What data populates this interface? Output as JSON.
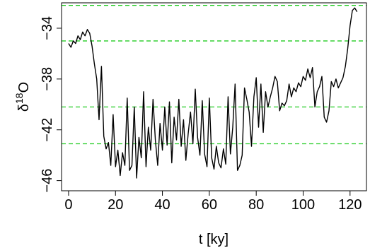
{
  "chart_data": {
    "type": "line",
    "title": "",
    "xlabel": "t [ky]",
    "ylabel": {
      "base": "δ",
      "sup": "18",
      "rest": "O"
    },
    "xlim": [
      -3,
      127
    ],
    "ylim": [
      -46.8,
      -32.0
    ],
    "y_inverted": false,
    "xticks": [
      0,
      20,
      40,
      60,
      80,
      100,
      120
    ],
    "xtick_labels": [
      "0",
      "20",
      "40",
      "60",
      "80",
      "100",
      "120"
    ],
    "yticks": [
      -34,
      -38,
      -42,
      -46
    ],
    "ytick_labels": [
      "−34",
      "−38",
      "−42",
      "−46"
    ],
    "grid": false,
    "reference_lines": {
      "orientation": "horizontal",
      "style": "dashed",
      "color": "#22cc22",
      "values": [
        -32.2,
        -35.0,
        -40.2,
        -43.1
      ]
    },
    "series": [
      {
        "color": "#000000",
        "x": [
          0,
          1,
          2,
          3,
          4,
          5,
          6,
          7,
          8,
          9,
          10,
          11,
          12,
          13,
          14,
          15,
          16,
          17,
          18,
          19,
          20,
          21,
          22,
          23,
          24,
          25,
          26,
          27,
          28,
          29,
          30,
          31,
          32,
          33,
          34,
          35,
          36,
          37,
          38,
          39,
          40,
          41,
          42,
          43,
          44,
          45,
          46,
          47,
          48,
          49,
          50,
          51,
          52,
          53,
          54,
          55,
          56,
          57,
          58,
          59,
          60,
          61,
          62,
          63,
          64,
          65,
          66,
          67,
          68,
          69,
          70,
          71,
          72,
          73,
          74,
          75,
          76,
          77,
          78,
          79,
          80,
          81,
          82,
          83,
          84,
          85,
          86,
          87,
          88,
          89,
          90,
          91,
          92,
          93,
          94,
          95,
          96,
          97,
          98,
          99,
          100,
          101,
          102,
          103,
          104,
          105,
          106,
          107,
          108,
          109,
          110,
          111,
          112,
          113,
          114,
          115,
          116,
          117,
          118,
          119,
          120,
          121,
          122,
          123
        ],
        "y": [
          -35.2,
          -35.5,
          -35.0,
          -35.2,
          -34.6,
          -34.9,
          -34.3,
          -34.6,
          -34.1,
          -34.4,
          -35.4,
          -36.8,
          -38.0,
          -41.2,
          -37.0,
          -42.5,
          -43.5,
          -43.0,
          -44.8,
          -40.8,
          -44.9,
          -43.6,
          -45.6,
          -43.8,
          -44.8,
          -39.5,
          -45.2,
          -44.8,
          -40.2,
          -45.8,
          -42.6,
          -44.2,
          -39.0,
          -44.9,
          -41.8,
          -43.6,
          -39.6,
          -42.8,
          -44.8,
          -41.5,
          -43.6,
          -40.2,
          -43.2,
          -39.8,
          -44.6,
          -41.0,
          -42.8,
          -39.6,
          -43.3,
          -41.2,
          -44.4,
          -42.3,
          -40.6,
          -43.1,
          -38.8,
          -42.6,
          -44.0,
          -39.7,
          -43.9,
          -44.9,
          -39.5,
          -44.2,
          -45.1,
          -43.3,
          -44.6,
          -45.0,
          -43.5,
          -44.7,
          -39.4,
          -43.9,
          -41.8,
          -38.4,
          -45.2,
          -44.8,
          -44.0,
          -38.7,
          -39.6,
          -40.6,
          -43.3,
          -39.4,
          -37.9,
          -41.8,
          -38.4,
          -42.2,
          -39.0,
          -40.2,
          -39.4,
          -38.7,
          -37.8,
          -38.2,
          -40.5,
          -39.9,
          -40.1,
          -39.7,
          -38.4,
          -39.4,
          -38.7,
          -39.0,
          -38.3,
          -38.6,
          -37.8,
          -38.1,
          -37.2,
          -37.9,
          -37.1,
          -40.2,
          -39.0,
          -38.6,
          -37.8,
          -41.0,
          -41.4,
          -40.5,
          -38.2,
          -38.6,
          -38.0,
          -38.7,
          -38.3,
          -37.9,
          -37.0,
          -35.6,
          -33.8,
          -32.6,
          -32.4,
          -32.7
        ]
      }
    ]
  }
}
